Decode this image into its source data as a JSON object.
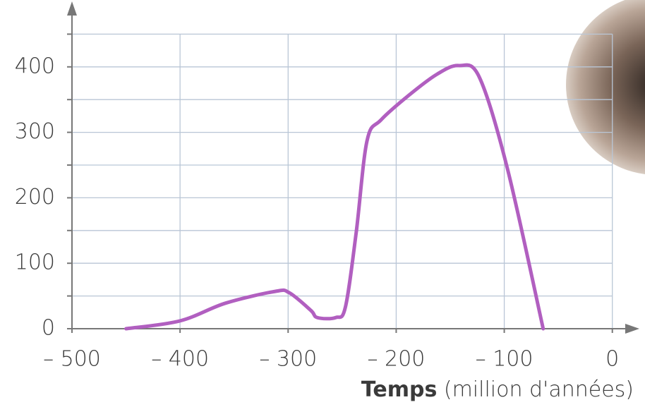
{
  "chart_data": {
    "type": "line",
    "x_label_bold": "Temps",
    "x_label": "(million d'années)",
    "x": [
      -450,
      -400,
      -358,
      -312,
      -299,
      -279,
      -273,
      -256,
      -247,
      -237,
      -227,
      -214,
      -188,
      -162,
      -142,
      -123,
      -97,
      -64
    ],
    "series": [
      {
        "color": "#b15fc0",
        "values": [
          0,
          12,
          39,
          57,
          55,
          28,
          17,
          17,
          33,
          147,
          287,
          319,
          357,
          389,
          402,
          384,
          244,
          0
        ]
      }
    ],
    "xlim": [
      -500,
      25
    ],
    "ylim": [
      0,
      500
    ],
    "xticks": [
      {
        "value": -500,
        "label": "– 500"
      },
      {
        "value": -400,
        "label": "– 400"
      },
      {
        "value": -300,
        "label": "– 300"
      },
      {
        "value": -200,
        "label": "– 200"
      },
      {
        "value": -100,
        "label": "– 100"
      },
      0
    ],
    "yticks": [
      0,
      100,
      200,
      300,
      400
    ],
    "y_minor_ticks": [
      50,
      150,
      250,
      350,
      450
    ],
    "grid": true
  }
}
